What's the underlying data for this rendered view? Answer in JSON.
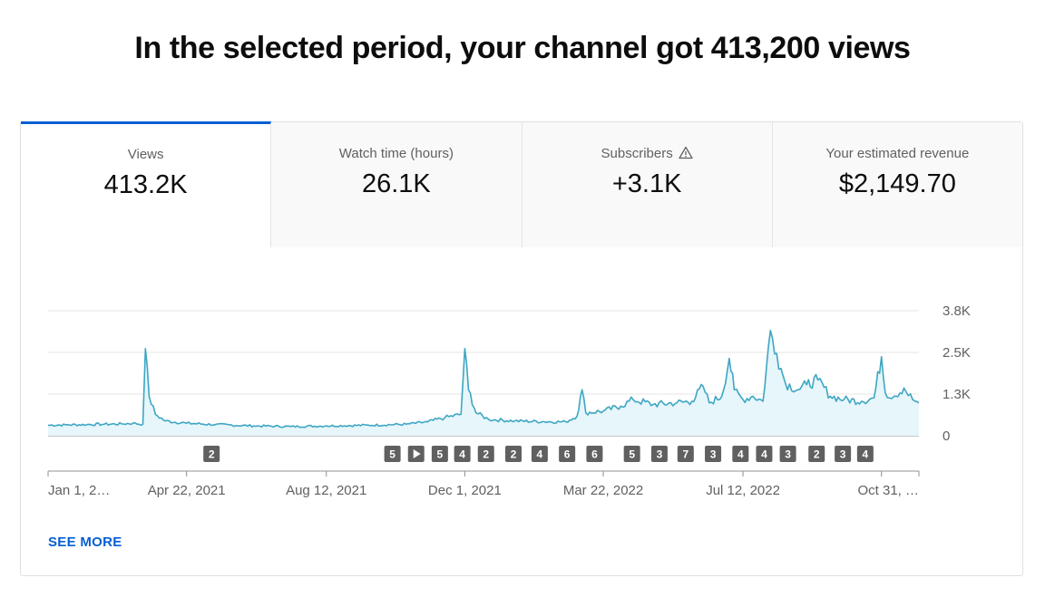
{
  "headline": "In the selected period, your channel got 413,200 views",
  "tabs": [
    {
      "label": "Views",
      "value": "413.2K",
      "active": true
    },
    {
      "label": "Watch time (hours)",
      "value": "26.1K",
      "active": false
    },
    {
      "label": "Subscribers",
      "value": "+3.1K",
      "active": false,
      "icon": "warning-triangle-icon"
    },
    {
      "label": "Your estimated revenue",
      "value": "$2,149.70",
      "active": false
    }
  ],
  "see_more": "SEE MORE",
  "colors": {
    "accent": "#065fd4",
    "line": "#3ea6c3",
    "fill": "#e6f6fa",
    "badge": "#606060"
  },
  "chart_data": {
    "type": "area",
    "y_ticks": [
      "3.8K",
      "2.5K",
      "1.3K",
      "0"
    ],
    "ylim": [
      0,
      3800
    ],
    "x_tick_labels": [
      "Jan 1, 2…",
      "Apr 22, 2021",
      "Aug 12, 2021",
      "Dec 1, 2021",
      "Mar 22, 2022",
      "Jul 12, 2022",
      "Oct 31, …"
    ],
    "x_ticks": [
      "2021-01-01",
      "2021-04-22",
      "2021-08-12",
      "2021-12-01",
      "2022-03-22",
      "2022-07-12",
      "2022-10-31"
    ],
    "date_range": [
      "2021-01-01",
      "2022-11-30"
    ],
    "grid": true,
    "series": [
      {
        "values": [
          [
            "2021-01-01",
            320
          ],
          [
            "2021-01-15",
            330
          ],
          [
            "2021-02-01",
            340
          ],
          [
            "2021-02-15",
            350
          ],
          [
            "2021-03-01",
            360
          ],
          [
            "2021-03-10",
            380
          ],
          [
            "2021-03-18",
            350
          ],
          [
            "2021-03-20",
            2650
          ],
          [
            "2021-03-23",
            1200
          ],
          [
            "2021-03-28",
            650
          ],
          [
            "2021-04-05",
            450
          ],
          [
            "2021-04-22",
            380
          ],
          [
            "2021-05-15",
            340
          ],
          [
            "2021-06-15",
            300
          ],
          [
            "2021-07-15",
            280
          ],
          [
            "2021-08-12",
            300
          ],
          [
            "2021-09-15",
            320
          ],
          [
            "2021-10-15",
            350
          ],
          [
            "2021-11-01",
            420
          ],
          [
            "2021-11-15",
            550
          ],
          [
            "2021-11-28",
            650
          ],
          [
            "2021-12-01",
            2650
          ],
          [
            "2021-12-04",
            1400
          ],
          [
            "2021-12-10",
            700
          ],
          [
            "2021-12-20",
            500
          ],
          [
            "2022-01-10",
            450
          ],
          [
            "2022-02-01",
            430
          ],
          [
            "2022-02-20",
            420
          ],
          [
            "2022-03-01",
            600
          ],
          [
            "2022-03-05",
            1400
          ],
          [
            "2022-03-08",
            700
          ],
          [
            "2022-03-22",
            750
          ],
          [
            "2022-04-05",
            900
          ],
          [
            "2022-04-15",
            1100
          ],
          [
            "2022-05-01",
            950
          ],
          [
            "2022-05-20",
            1000
          ],
          [
            "2022-06-01",
            1050
          ],
          [
            "2022-06-10",
            1500
          ],
          [
            "2022-06-15",
            1000
          ],
          [
            "2022-06-25",
            1200
          ],
          [
            "2022-07-01",
            2350
          ],
          [
            "2022-07-05",
            1400
          ],
          [
            "2022-07-12",
            1100
          ],
          [
            "2022-07-20",
            1200
          ],
          [
            "2022-07-28",
            1050
          ],
          [
            "2022-08-03",
            3200
          ],
          [
            "2022-08-08",
            2500
          ],
          [
            "2022-08-15",
            1600
          ],
          [
            "2022-08-25",
            1400
          ],
          [
            "2022-09-01",
            1550
          ],
          [
            "2022-09-10",
            1700
          ],
          [
            "2022-09-20",
            1200
          ],
          [
            "2022-10-01",
            1100
          ],
          [
            "2022-10-15",
            1050
          ],
          [
            "2022-10-25",
            1150
          ],
          [
            "2022-10-31",
            2400
          ],
          [
            "2022-11-03",
            1300
          ],
          [
            "2022-11-10",
            1200
          ],
          [
            "2022-11-18",
            1450
          ],
          [
            "2022-11-25",
            1100
          ],
          [
            "2022-11-30",
            1000
          ]
        ]
      }
    ],
    "annotations": [
      {
        "date": "2021-05-12",
        "label": "2"
      },
      {
        "date": "2021-10-04",
        "label": "5"
      },
      {
        "date": "2021-10-23",
        "label": "play",
        "icon": "play-icon"
      },
      {
        "date": "2021-11-11",
        "label": "5"
      },
      {
        "date": "2021-11-29",
        "label": "4"
      },
      {
        "date": "2021-12-18",
        "label": "2"
      },
      {
        "date": "2022-01-09",
        "label": "2"
      },
      {
        "date": "2022-01-30",
        "label": "4"
      },
      {
        "date": "2022-02-21",
        "label": "6"
      },
      {
        "date": "2022-03-15",
        "label": "6"
      },
      {
        "date": "2022-04-14",
        "label": "5"
      },
      {
        "date": "2022-05-06",
        "label": "3"
      },
      {
        "date": "2022-05-27",
        "label": "7"
      },
      {
        "date": "2022-06-18",
        "label": "3"
      },
      {
        "date": "2022-07-10",
        "label": "4"
      },
      {
        "date": "2022-07-29",
        "label": "4"
      },
      {
        "date": "2022-08-17",
        "label": "3"
      },
      {
        "date": "2022-09-09",
        "label": "2"
      },
      {
        "date": "2022-09-30",
        "label": "3"
      },
      {
        "date": "2022-10-18",
        "label": "4"
      }
    ]
  }
}
